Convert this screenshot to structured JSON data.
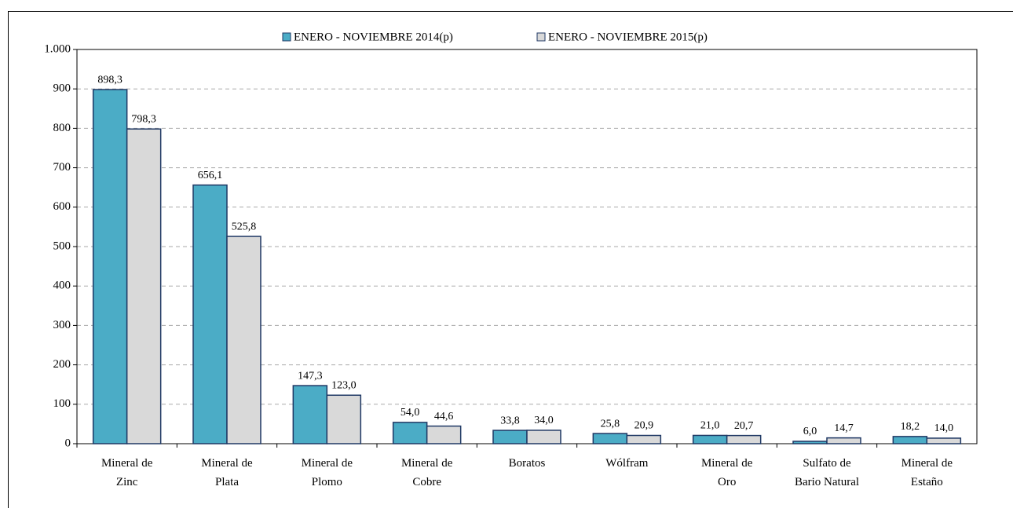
{
  "chart_data": {
    "type": "bar",
    "categories": [
      "Mineral de\nZinc",
      "Mineral de\nPlata",
      "Mineral de\nPlomo",
      "Mineral de\nCobre",
      "Boratos",
      "Wólfram",
      "Mineral de\nOro",
      "Sulfato de\nBario Natural",
      "Mineral de\nEstaño"
    ],
    "series": [
      {
        "name": "ENERO - NOVIEMBRE 2014(p)",
        "color": "#4bacc6",
        "values": [
          898.3,
          656.1,
          147.3,
          54.0,
          33.8,
          25.8,
          21.0,
          6.0,
          18.2
        ],
        "value_labels": [
          "898,3",
          "656,1",
          "147,3",
          "54,0",
          "33,8",
          "25,8",
          "21,0",
          "6,0",
          "18,2"
        ]
      },
      {
        "name": "ENERO - NOVIEMBRE 2015(p)",
        "color": "#d9d9d9",
        "values": [
          798.3,
          525.8,
          123.0,
          44.6,
          34.0,
          20.9,
          20.7,
          14.7,
          14.0
        ],
        "value_labels": [
          "798,3",
          "525,8",
          "123,0",
          "44,6",
          "34,0",
          "20,9",
          "20,7",
          "14,7",
          "14,0"
        ]
      }
    ],
    "ylim": [
      0,
      1000
    ],
    "yticks": [
      0,
      100,
      200,
      300,
      400,
      500,
      600,
      700,
      800,
      900,
      {
        "value": 1000,
        "label": "1.000"
      }
    ],
    "grid": true,
    "legend": "top"
  }
}
